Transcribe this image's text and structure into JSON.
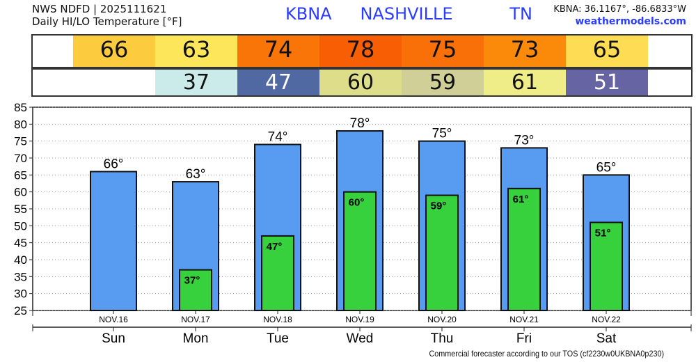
{
  "header": {
    "line1": "NWS NDFD | 2025111621",
    "line2": "Daily HI/LO Temperature [°F]",
    "station": "KBNA   NASHVILLE      TN",
    "coords": "KBNA: 36.1167°, -86.6833°W",
    "site": "weathermodels.com"
  },
  "footer": "Commercial forecaster according to our TOS (cf2230w0UKBNA0p230)",
  "hi_row": [
    {
      "v": "66",
      "c": "#fccb3e",
      "t": "#111"
    },
    {
      "v": "63",
      "c": "#fee65a",
      "t": "#111"
    },
    {
      "v": "74",
      "c": "#f97507",
      "t": "#111"
    },
    {
      "v": "78",
      "c": "#f85f04",
      "t": "#111"
    },
    {
      "v": "75",
      "c": "#f97008",
      "t": "#111"
    },
    {
      "v": "73",
      "c": "#fb8a0a",
      "t": "#111"
    },
    {
      "v": "65",
      "c": "#fedd55",
      "t": "#111"
    }
  ],
  "lo_row": [
    null,
    {
      "v": "37",
      "c": "#cbeaea",
      "t": "#111"
    },
    {
      "v": "47",
      "c": "#5069a2",
      "t": "#fff"
    },
    {
      "v": "60",
      "c": "#dedd8a",
      "t": "#111"
    },
    {
      "v": "59",
      "c": "#cfcf97",
      "t": "#111"
    },
    {
      "v": "61",
      "c": "#eeed88",
      "t": "#111"
    },
    {
      "v": "51",
      "c": "#6664a2",
      "t": "#fff"
    }
  ],
  "chart_data": {
    "type": "bar",
    "categories": [
      "Sun",
      "Mon",
      "Tue",
      "Wed",
      "Thu",
      "Fri",
      "Sat"
    ],
    "dates": [
      "NOV.16",
      "NOV.17",
      "NOV.18",
      "NOV.19",
      "NOV.20",
      "NOV.21",
      "NOV.22"
    ],
    "series": [
      {
        "name": "High",
        "color": "#589cf2",
        "values": [
          66,
          63,
          74,
          78,
          75,
          73,
          65
        ]
      },
      {
        "name": "Low",
        "color": "#38d13e",
        "values": [
          null,
          37,
          47,
          60,
          59,
          61,
          51
        ]
      }
    ],
    "ylim": [
      25,
      85
    ],
    "yticks": [
      25,
      30,
      35,
      40,
      45,
      50,
      55,
      60,
      65,
      70,
      75,
      80,
      85
    ],
    "grid": true
  }
}
